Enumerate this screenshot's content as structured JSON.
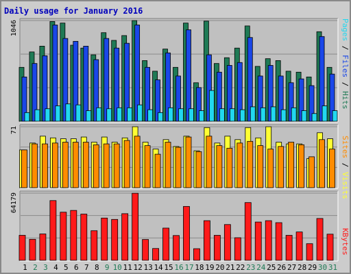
{
  "title": "Daily usage for January 2016",
  "colors": {
    "hits": "#1f7a55",
    "files": "#1a47e8",
    "pages": "#22d8f0",
    "visits": "#ffff33",
    "sites": "#ff8c00",
    "kbytes": "#ff1a1a",
    "weekend_label": "#1f7a55",
    "weekday_label": "#000000"
  },
  "legend": {
    "pages": "Pages",
    "files": "Files",
    "hits": "Hits",
    "sites": "Sites",
    "visits": "Visits",
    "kbytes": "KBytes",
    "sep": " / "
  },
  "chart_data": [
    {
      "type": "bar",
      "panel": "hits-files-pages",
      "x": [
        1,
        2,
        3,
        4,
        5,
        6,
        7,
        8,
        9,
        10,
        11,
        12,
        13,
        14,
        15,
        16,
        17,
        18,
        19,
        20,
        21,
        22,
        23,
        24,
        25,
        26,
        27,
        28,
        29,
        30,
        31
      ],
      "ytick": "1046",
      "ylim": [
        0,
        1046
      ],
      "series": [
        {
          "name": "Hits",
          "values": [
            560,
            720,
            780,
            1036,
            1020,
            790,
            760,
            690,
            920,
            840,
            890,
            1046,
            630,
            520,
            750,
            560,
            1020,
            400,
            1040,
            600,
            660,
            760,
            990,
            570,
            650,
            630,
            520,
            510,
            460,
            930,
            560
          ]
        },
        {
          "name": "Files",
          "values": [
            460,
            600,
            680,
            1000,
            860,
            830,
            780,
            640,
            860,
            760,
            810,
            1000,
            560,
            430,
            710,
            470,
            950,
            350,
            690,
            510,
            580,
            610,
            870,
            470,
            580,
            470,
            400,
            440,
            370,
            880,
            490
          ]
        },
        {
          "name": "Pages",
          "values": [
            90,
            120,
            130,
            160,
            180,
            170,
            110,
            140,
            130,
            140,
            140,
            170,
            120,
            90,
            140,
            130,
            130,
            110,
            320,
            130,
            130,
            120,
            150,
            140,
            150,
            120,
            140,
            110,
            80,
            160,
            110
          ]
        }
      ]
    },
    {
      "type": "bar",
      "panel": "visits-sites",
      "x": [
        1,
        2,
        3,
        4,
        5,
        6,
        7,
        8,
        9,
        10,
        11,
        12,
        13,
        14,
        15,
        16,
        17,
        18,
        19,
        20,
        21,
        22,
        23,
        24,
        25,
        26,
        27,
        28,
        29,
        30,
        31
      ],
      "ytick": "71",
      "ylim": [
        0,
        71
      ],
      "series": [
        {
          "name": "Visits",
          "values": [
            44,
            52,
            60,
            58,
            57,
            57,
            59,
            53,
            59,
            53,
            58,
            71,
            53,
            45,
            56,
            48,
            60,
            43,
            70,
            52,
            60,
            56,
            70,
            58,
            71,
            53,
            51,
            51,
            34,
            64,
            57
          ]
        },
        {
          "name": "Sites",
          "values": [
            44,
            51,
            51,
            52,
            53,
            53,
            53,
            50,
            51,
            51,
            55,
            60,
            49,
            39,
            53,
            47,
            59,
            42,
            60,
            49,
            46,
            52,
            54,
            49,
            45,
            48,
            53,
            50,
            36,
            56,
            45
          ]
        }
      ]
    },
    {
      "type": "bar",
      "panel": "kbytes",
      "x": [
        1,
        2,
        3,
        4,
        5,
        6,
        7,
        8,
        9,
        10,
        11,
        12,
        13,
        14,
        15,
        16,
        17,
        18,
        19,
        20,
        21,
        22,
        23,
        24,
        25,
        26,
        27,
        28,
        29,
        30,
        31
      ],
      "ytick": "64179",
      "ylim": [
        0,
        64179
      ],
      "series": [
        {
          "name": "KBytes",
          "values": [
            23900,
            20100,
            25200,
            57100,
            46000,
            47700,
            44200,
            28300,
            40400,
            39100,
            44600,
            64100,
            19900,
            11300,
            30800,
            23700,
            51500,
            11100,
            37900,
            23900,
            34200,
            21600,
            55200,
            36600,
            37900,
            36000,
            23900,
            27100,
            15900,
            40000,
            25000
          ]
        }
      ]
    }
  ]
}
